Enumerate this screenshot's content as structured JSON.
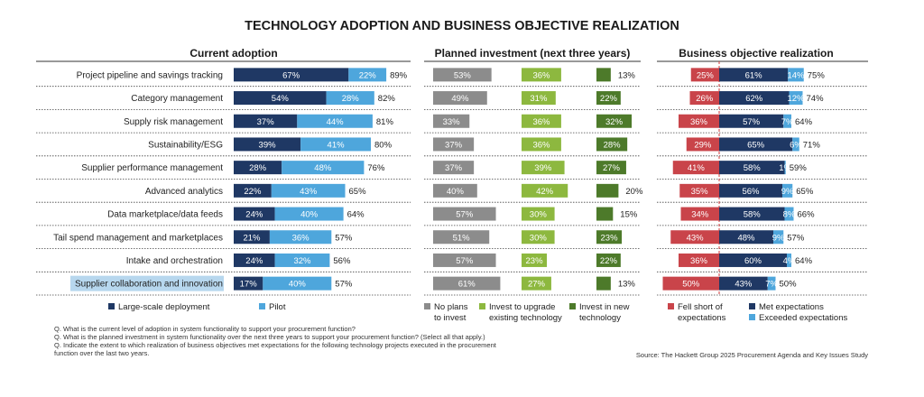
{
  "title": "TECHNOLOGY ADOPTION AND BUSINESS OBJECTIVE REALIZATION",
  "colors": {
    "navy": "#1f3864",
    "lightblue": "#4ea6dc",
    "gray": "#8c8c8c",
    "lightgreen": "#8db83f",
    "darkgreen": "#4d7a2a",
    "red": "#c9444a",
    "divider": "#444444",
    "redline": "#d03a3a"
  },
  "chart_data": {
    "type": "bar",
    "categories": [
      "Project pipeline and savings tracking",
      "Category management",
      "Supply risk management",
      "Sustainability/ESG",
      "Supplier performance management",
      "Advanced analytics",
      "Data marketplace/data feeds",
      "Tail spend management and marketplaces",
      "Intake and orchestration",
      "Supplier collaboration and innovation"
    ],
    "highlighted_category": "Supplier collaboration and innovation",
    "panels": [
      {
        "title": "Current adoption",
        "series": [
          {
            "name": "Large-scale deployment",
            "values": [
              67,
              54,
              37,
              39,
              28,
              22,
              24,
              21,
              24,
              17
            ]
          },
          {
            "name": "Pilot",
            "values": [
              22,
              28,
              44,
              41,
              48,
              43,
              40,
              36,
              32,
              40
            ]
          }
        ],
        "totals": [
          "89%",
          "82%",
          "81%",
          "80%",
          "76%",
          "65%",
          "64%",
          "57%",
          "56%",
          "57%"
        ]
      },
      {
        "title": "Planned investment (next three years)",
        "series": [
          {
            "name": "No plans to invest",
            "values": [
              53,
              49,
              33,
              37,
              37,
              40,
              57,
              51,
              57,
              61
            ]
          },
          {
            "name": "Invest to upgrade existing technology",
            "values": [
              36,
              31,
              36,
              36,
              39,
              42,
              30,
              30,
              23,
              27
            ]
          },
          {
            "name": "Invest in new technology",
            "values": [
              13,
              22,
              32,
              28,
              27,
              20,
              15,
              23,
              22,
              13
            ]
          }
        ]
      },
      {
        "title": "Business objective realization",
        "series": [
          {
            "name": "Fell short of expectations",
            "values": [
              25,
              26,
              36,
              29,
              41,
              35,
              34,
              43,
              36,
              50
            ]
          },
          {
            "name": "Met expectations",
            "values": [
              61,
              62,
              57,
              65,
              58,
              56,
              58,
              48,
              60,
              43
            ]
          },
          {
            "name": "Exceeded expectations",
            "values": [
              14,
              12,
              7,
              6,
              1,
              9,
              8,
              9,
              4,
              7
            ]
          }
        ],
        "totals": [
          "75%",
          "74%",
          "64%",
          "71%",
          "59%",
          "65%",
          "66%",
          "57%",
          "64%",
          "50%"
        ]
      }
    ]
  },
  "legends": {
    "adoption": [
      "Large-scale deployment",
      "Pilot"
    ],
    "investment": [
      [
        "No plans",
        "to invest"
      ],
      [
        "Invest to upgrade",
        "existing technology"
      ],
      [
        "Invest in new",
        "technology"
      ]
    ],
    "realization": [
      [
        "Fell short of",
        "expectations"
      ],
      [
        "Met expectations"
      ],
      [
        "Exceeded expectations"
      ]
    ]
  },
  "footnotes": [
    "Q. What is the current level of adoption in system functionality to support your procurement function?",
    "Q. What is the planned investment in system functionality over the next three years to support your procurement function? (Select all that apply.)",
    "Q. Indicate the extent to which realization of business objectives met expectations for the following technology projects executed in the procurement",
    "function over the last two years."
  ],
  "source": "Source: The Hackett Group 2025 Procurement Agenda and Key Issues Study"
}
